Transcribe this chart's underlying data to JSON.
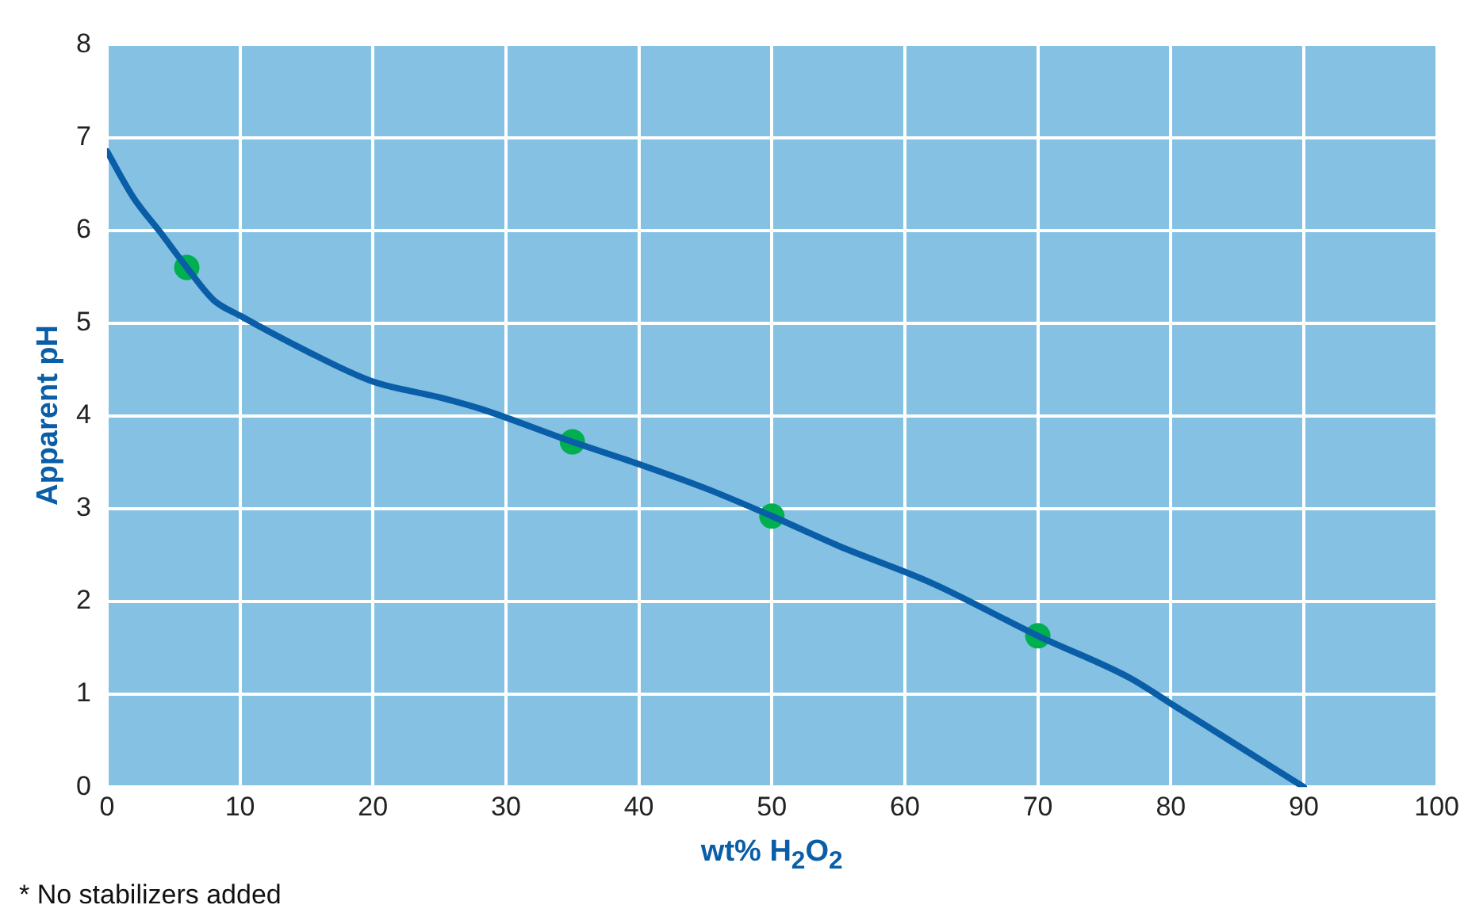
{
  "chart_data": {
    "type": "line",
    "xlabel": "wt% H$_{2}$O$_{2}$",
    "ylabel": "Apparent pH",
    "annotations": [
      "* No stabilizers added"
    ],
    "xlim": [
      0,
      100
    ],
    "xticks": [
      0,
      10,
      20,
      30,
      40,
      50,
      60,
      70,
      80,
      90,
      100
    ],
    "ylim": [
      0,
      8
    ],
    "yticks": [
      0,
      1,
      2,
      3,
      4,
      5,
      6,
      7,
      8
    ],
    "grid": true,
    "legend": false,
    "series": [
      {
        "color": "#0a5ea8",
        "marker": "none",
        "x": [
          0,
          2,
          4,
          6,
          8,
          10,
          15,
          20,
          25,
          28,
          35,
          40,
          45,
          50,
          55,
          62,
          70,
          77,
          80,
          85,
          90
        ],
        "values": [
          6.85,
          6.35,
          5.98,
          5.6,
          5.25,
          5.08,
          4.7,
          4.37,
          4.2,
          4.08,
          3.72,
          3.48,
          3.22,
          2.92,
          2.6,
          2.2,
          1.63,
          1.17,
          0.9,
          0.45,
          0
        ]
      },
      {
        "type": "scatter",
        "color": "#00b050",
        "marker": "circle",
        "x": [
          6,
          35,
          50,
          70
        ],
        "values": [
          5.6,
          3.72,
          2.92,
          1.63
        ]
      }
    ]
  }
}
